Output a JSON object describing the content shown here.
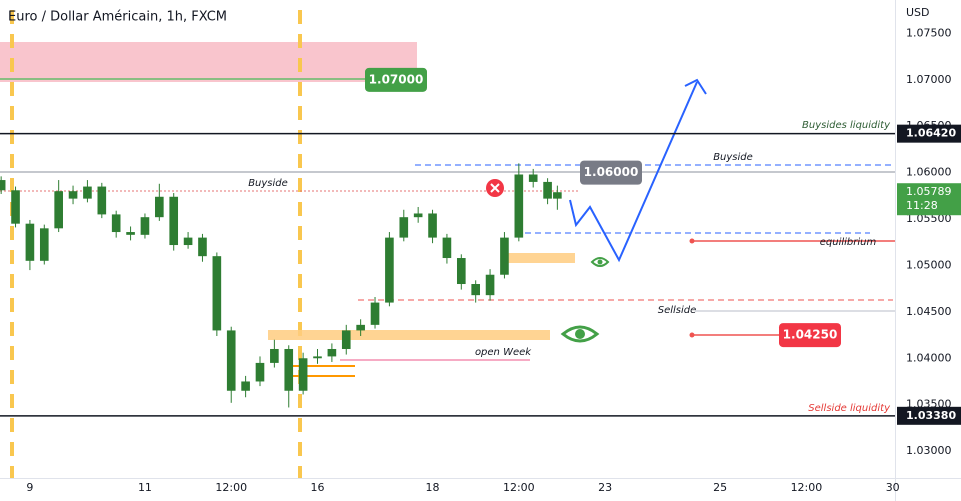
{
  "chart_data": {
    "type": "candlestick",
    "title": "Euro / Dollar Américain, 1h, FXCM",
    "currency": "USD",
    "x": [
      -0.5,
      -0.25,
      0,
      0.25,
      0.5,
      0.75,
      1,
      1.25,
      1.5,
      1.75,
      2,
      2.25,
      2.5,
      2.75,
      3,
      3.25,
      3.5,
      3.75,
      4,
      4.25,
      4.5,
      4.75,
      5,
      5.25,
      5.5,
      5.75,
      6,
      6.25,
      6.5,
      6.75,
      7,
      7.25,
      7.5,
      7.75,
      8,
      8.25,
      8.5,
      8.75,
      9,
      9.17
    ],
    "open": [
      1.0592,
      1.0581,
      1.0545,
      1.0505,
      1.054,
      1.058,
      1.0572,
      1.0585,
      1.0555,
      1.0536,
      1.0533,
      1.0552,
      1.0574,
      1.0522,
      1.053,
      1.051,
      1.043,
      1.0365,
      1.0375,
      1.0395,
      1.041,
      1.0365,
      1.04,
      1.0402,
      1.041,
      1.043,
      1.0436,
      1.046,
      1.053,
      1.0552,
      1.0556,
      1.053,
      1.0508,
      1.048,
      1.0468,
      1.049,
      1.053,
      1.0598,
      1.059,
      1.0572
    ],
    "high": [
      1.0596,
      1.0585,
      1.0549,
      1.0544,
      1.0592,
      1.0586,
      1.0592,
      1.0589,
      1.0559,
      1.0542,
      1.0556,
      1.0588,
      1.0578,
      1.0536,
      1.0534,
      1.0514,
      1.0434,
      1.0381,
      1.0402,
      1.042,
      1.0414,
      1.0406,
      1.041,
      1.0416,
      1.0436,
      1.0442,
      1.0466,
      1.0536,
      1.056,
      1.0563,
      1.056,
      1.0534,
      1.0512,
      1.0484,
      1.0496,
      1.0536,
      1.061,
      1.0604,
      1.0594,
      1.0586
    ],
    "low": [
      1.0577,
      1.0541,
      1.0495,
      1.0501,
      1.0536,
      1.0566,
      1.0568,
      1.0551,
      1.053,
      1.0527,
      1.0529,
      1.0548,
      1.0516,
      1.0518,
      1.0504,
      1.0424,
      1.0352,
      1.0358,
      1.037,
      1.039,
      1.0347,
      1.0361,
      1.0394,
      1.0396,
      1.0404,
      1.0424,
      1.0432,
      1.0456,
      1.0526,
      1.0546,
      1.0524,
      1.0502,
      1.0474,
      1.046,
      1.0462,
      1.0486,
      1.0526,
      1.0584,
      1.0566,
      1.056
    ],
    "close": [
      1.0581,
      1.0545,
      1.0505,
      1.054,
      1.058,
      1.0572,
      1.0585,
      1.0555,
      1.0536,
      1.0533,
      1.0552,
      1.0574,
      1.0522,
      1.053,
      1.051,
      1.043,
      1.0365,
      1.0375,
      1.0395,
      1.041,
      1.0365,
      1.04,
      1.0402,
      1.041,
      1.043,
      1.0436,
      1.046,
      1.053,
      1.0552,
      1.0556,
      1.053,
      1.0508,
      1.048,
      1.0468,
      1.049,
      1.053,
      1.0598,
      1.059,
      1.0572,
      1.05789
    ],
    "up_color": "#2e7d32",
    "down_color": "#2e7d32",
    "xlim": [
      -0.52,
      15.04
    ],
    "ylim": [
      1.0271,
      1.0786
    ],
    "xticks": [
      {
        "value": 0,
        "label": "9"
      },
      {
        "value": 2,
        "label": "11"
      },
      {
        "value": 3.5,
        "label": "12:00"
      },
      {
        "value": 5,
        "label": "16"
      },
      {
        "value": 7,
        "label": "18"
      },
      {
        "value": 8.5,
        "label": "12:00"
      },
      {
        "value": 10,
        "label": "23"
      },
      {
        "value": 12,
        "label": "25"
      },
      {
        "value": 13.5,
        "label": "12:00"
      },
      {
        "value": 15,
        "label": "30"
      }
    ],
    "yticks": [
      {
        "value": 1.075,
        "label": "1.07500"
      },
      {
        "value": 1.07,
        "label": "1.07000"
      },
      {
        "value": 1.065,
        "label": "1.06500"
      },
      {
        "value": 1.06,
        "label": "1.06000"
      },
      {
        "value": 1.055,
        "label": "1.05500"
      },
      {
        "value": 1.05,
        "label": "1.05000"
      },
      {
        "value": 1.045,
        "label": "1.04500"
      },
      {
        "value": 1.04,
        "label": "1.04000"
      },
      {
        "value": 1.035,
        "label": "1.03500"
      },
      {
        "value": 1.03,
        "label": "1.03000"
      }
    ],
    "levels": [
      {
        "value": 1.0642,
        "label": "1.06420"
      },
      {
        "value": 1.0338,
        "label": "1.03380"
      }
    ],
    "last_price": {
      "value": 1.05789,
      "label": "1.05789",
      "time": "11:28",
      "color": "#43a047"
    },
    "price_labels": [
      {
        "value": 1.07,
        "label": "1.07000",
        "color": "#43a047"
      },
      {
        "value": 1.06,
        "label": "1.06000",
        "color": "#787b86"
      },
      {
        "value": 1.0425,
        "label": "1.04250",
        "color": "#f23645"
      }
    ],
    "annotations": [
      "Buysides liquidity",
      "Buyside",
      "Buyside",
      "equilibrium",
      "Sellside",
      "open Week",
      "Sellside liquidity"
    ]
  }
}
